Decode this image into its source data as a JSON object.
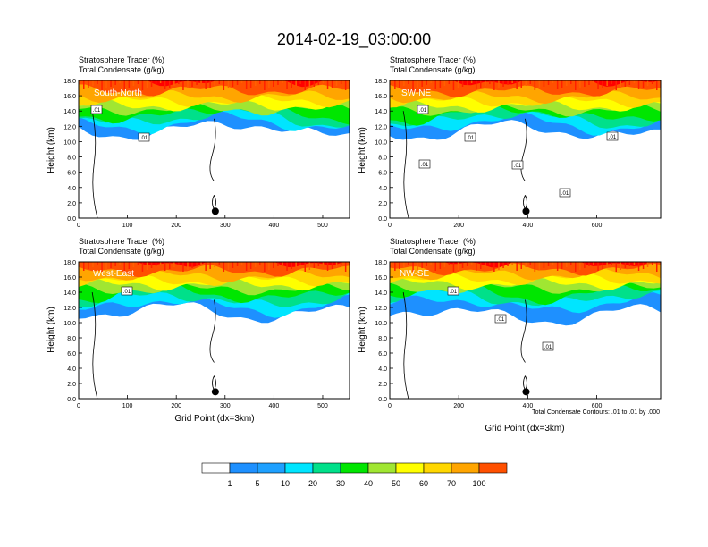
{
  "title": "2014-02-19_03:00:00",
  "colors": {
    "levels": [
      "#ffffff",
      "#1e90ff",
      "#1ea0ff",
      "#00e5ff",
      "#00e08a",
      "#00e600",
      "#a0e632",
      "#ffff00",
      "#ffd700",
      "#ffa500",
      "#ff5000",
      "#ff0000"
    ],
    "contour": "#000000",
    "frame": "#000000"
  },
  "chart_data": [
    {
      "type": "heatmap",
      "panel_label": "South-North",
      "title_lines": [
        "Stratosphere Tracer   (%)",
        "Total Condensate   (g/kg)"
      ],
      "ylabel": "Height (km)",
      "xlabel": "",
      "xlim": [
        0,
        555
      ],
      "ylim": [
        0,
        18
      ],
      "xticks": [
        0,
        100,
        200,
        300,
        400,
        500
      ],
      "yticks": [
        "0.0",
        "2.0",
        "4.0",
        "6.0",
        "8.0",
        "10.0",
        "12.0",
        "14.0",
        "16.0",
        "18.0"
      ],
      "contour_labels": [
        ".01",
        ".01"
      ],
      "marker_x": 280
    },
    {
      "type": "heatmap",
      "panel_label": "SW-NE",
      "title_lines": [
        "Stratosphere Tracer   (%)",
        "Total Condensate   (g/kg)"
      ],
      "ylabel": "Height (km)",
      "xlabel": "",
      "xlim": [
        0,
        785
      ],
      "ylim": [
        0,
        18
      ],
      "xticks": [
        0,
        200,
        400,
        600
      ],
      "yticks": [
        "0.0",
        "2.0",
        "4.0",
        "6.0",
        "8.0",
        "10.0",
        "12.0",
        "14.0",
        "16.0",
        "18.0"
      ],
      "contour_labels": [
        ".01",
        ".01",
        ".01",
        ".01",
        ".01",
        ".01"
      ],
      "marker_x": 395
    },
    {
      "type": "heatmap",
      "panel_label": "West-East",
      "title_lines": [
        "Stratosphere Tracer   (%)",
        "Total Condensate   (g/kg)"
      ],
      "ylabel": "Height (km)",
      "xlabel": "Grid Point (dx=3km)",
      "xlim": [
        0,
        555
      ],
      "ylim": [
        0,
        18
      ],
      "xticks": [
        0,
        100,
        200,
        300,
        400,
        500
      ],
      "yticks": [
        "0.0",
        "2.0",
        "4.0",
        "6.0",
        "8.0",
        "10.0",
        "12.0",
        "14.0",
        "16.0",
        "18.0"
      ],
      "contour_labels": [
        ".01"
      ],
      "marker_x": 280
    },
    {
      "type": "heatmap",
      "panel_label": "NW-SE",
      "title_lines": [
        "Stratosphere Tracer   (%)",
        "Total Condensate   (g/kg)"
      ],
      "ylabel": "Height (km)",
      "xlabel": "Grid Point (dx=3km)",
      "xlim": [
        0,
        785
      ],
      "ylim": [
        0,
        18
      ],
      "xticks": [
        0,
        200,
        400,
        600
      ],
      "yticks": [
        "0.0",
        "2.0",
        "4.0",
        "6.0",
        "8.0",
        "10.0",
        "12.0",
        "14.0",
        "16.0",
        "18.0"
      ],
      "contour_labels": [
        ".01",
        ".01",
        ".01"
      ],
      "marker_x": 395,
      "footnote": "Total Condensate Contours: .01 to .01 by .000"
    }
  ],
  "colorbar": {
    "labels": [
      "1",
      "5",
      "10",
      "20",
      "30",
      "40",
      "50",
      "60",
      "70",
      "100"
    ]
  }
}
